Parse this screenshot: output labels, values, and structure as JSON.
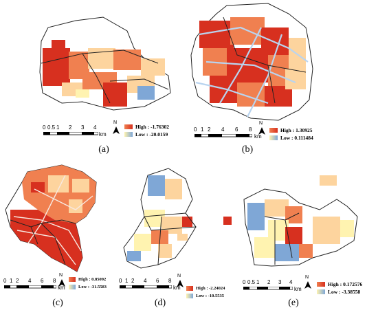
{
  "colors": {
    "high": "#d7301f",
    "mid_high": "#f08050",
    "mid": "#fdd49e",
    "mid_low": "#fff3b0",
    "low": "#7fa7d6",
    "road": "#b9d4ef",
    "boundary": "#222222"
  },
  "north_label": "N",
  "km_label": "km",
  "panels": [
    {
      "caption": "(a)",
      "scale_ticks": [
        "0",
        "0.5",
        "1",
        "2",
        "3",
        "4"
      ],
      "legend": {
        "high": "High : -1.76302",
        "low": "Low : -20.0159"
      }
    },
    {
      "caption": "(b)",
      "scale_ticks": [
        "0",
        "1",
        "2",
        "4",
        "6",
        "8"
      ],
      "legend": {
        "high": "High : 1.30925",
        "low": "Low : 0.111484"
      }
    },
    {
      "caption": "(c)",
      "scale_ticks": [
        "0",
        "1",
        "2",
        "4",
        "6",
        "8"
      ],
      "legend": {
        "high": "High : 0.85092",
        "low": "Low : -31.5583"
      }
    },
    {
      "caption": "(d)",
      "scale_ticks": [
        "0",
        "1",
        "2",
        "4",
        "6",
        "8"
      ],
      "legend": {
        "high": "High : -2.24024",
        "low": "Low : -10.5535"
      }
    },
    {
      "caption": "(e)",
      "scale_ticks": [
        "0",
        "0.5",
        "1",
        "2",
        "3",
        "4"
      ],
      "legend": {
        "high": "High : 0.172576",
        "low": "Low : -3.38558"
      }
    }
  ]
}
